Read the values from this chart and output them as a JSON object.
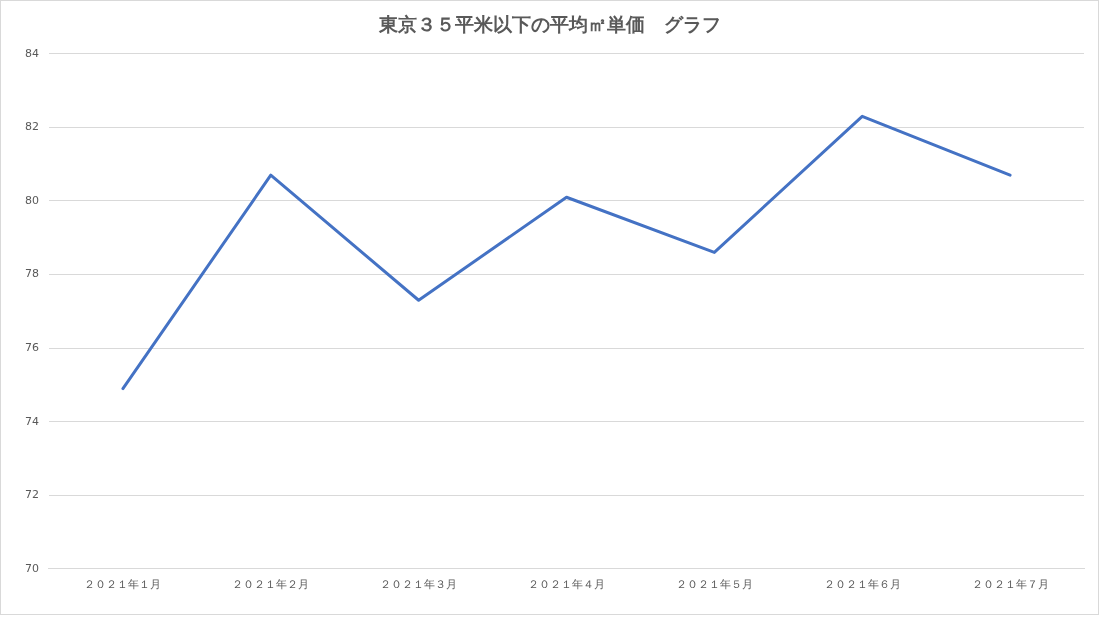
{
  "chart_data": {
    "type": "line",
    "title": "東京３５平米以下の平均㎡単価　グラフ",
    "categories": [
      "２０２１年１月",
      "２０２１年２月",
      "２０２１年３月",
      "２０２１年４月",
      "２０２１年５月",
      "２０２１年６月",
      "２０２１年７月"
    ],
    "series": [
      {
        "color": "#4472c4",
        "values": [
          74.9,
          80.7,
          77.3,
          80.1,
          78.6,
          82.3,
          80.7
        ]
      }
    ],
    "ylim": [
      70,
      84
    ],
    "yticks": [
      70,
      72,
      74,
      76,
      78,
      80,
      82,
      84
    ],
    "grid": "y",
    "legend": false,
    "marker": "none",
    "line_style": "solid"
  }
}
